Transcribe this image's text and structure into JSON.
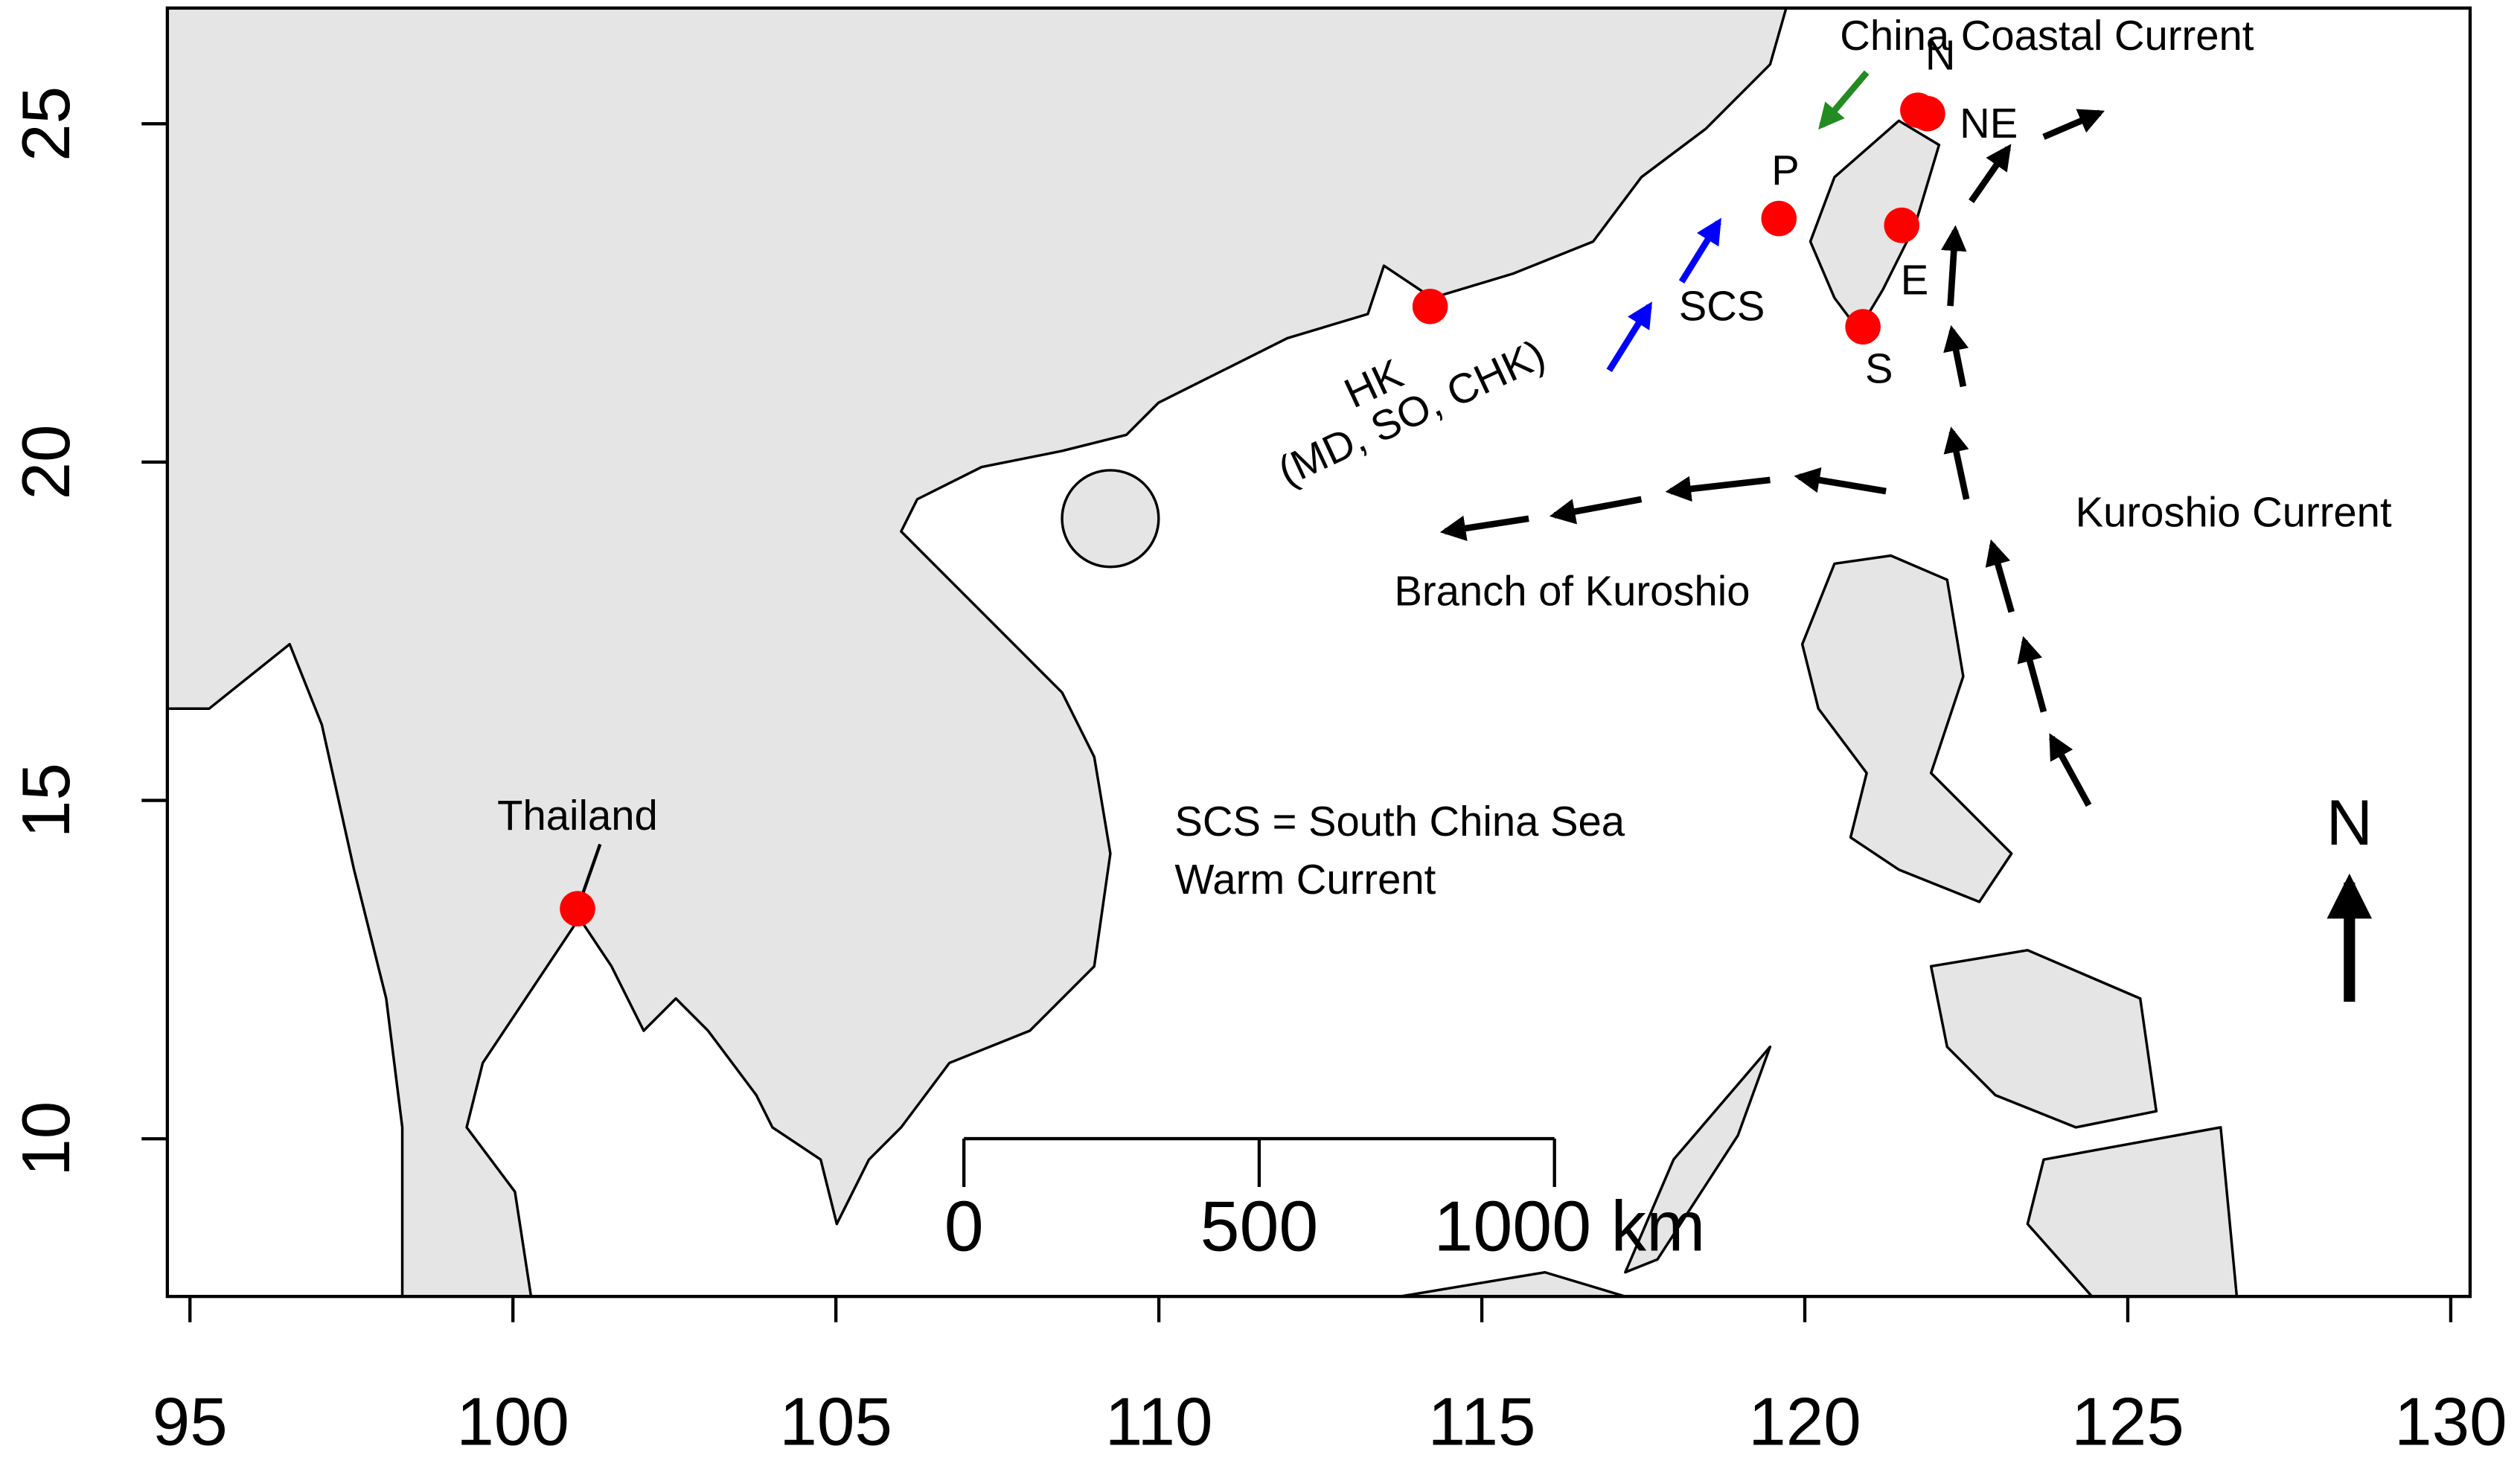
{
  "chart_data": {
    "type": "map",
    "xlim": [
      94.65,
      130.3
    ],
    "ylim": [
      7.67,
      26.71
    ],
    "xticks": [
      95,
      100,
      105,
      110,
      115,
      120,
      125,
      130
    ],
    "yticks": [
      10,
      15,
      20,
      25
    ],
    "site_color": "#ff0000",
    "sites": [
      {
        "label": "Thailand",
        "lon": 101,
        "lat": 13.4
      },
      {
        "label": "HK",
        "lon": 114.2,
        "lat": 22.3
      },
      {
        "label": "P",
        "lon": 119.6,
        "lat": 23.6
      },
      {
        "label": "N",
        "lon": 121.75,
        "lat": 25.2
      },
      {
        "label": "NE",
        "lon": 121.9,
        "lat": 25.15
      },
      {
        "label": "E",
        "lon": 121.5,
        "lat": 23.5
      },
      {
        "label": "S",
        "lon": 120.9,
        "lat": 22.0
      }
    ],
    "annotations": [
      "China Coastal Current",
      "SCS",
      "(MD, SO, CHK)",
      "Branch of Kuroshio",
      "Kuroshio Current",
      "SCS = South China Sea",
      "Warm Current",
      "N"
    ],
    "scale_bar": {
      "ticks": [
        0,
        500,
        {
          "value": 1000,
          "label": "1000 km"
        }
      ]
    }
  }
}
